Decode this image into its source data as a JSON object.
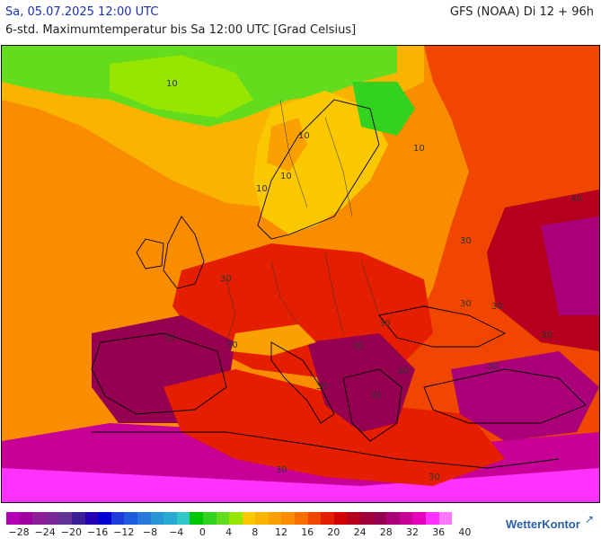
{
  "header": {
    "date": "Sa, 05.07.2025 12:00 UTC",
    "model": "GFS (NOAA) Di 12 + 96h",
    "description": "6-std. Maximumtemperatur bis Sa 12:00 UTC [Grad Celsius]"
  },
  "legend": {
    "colors": [
      "#b400b4",
      "#a000a0",
      "#8c1e96",
      "#7a2896",
      "#643296",
      "#3c1e96",
      "#2800b4",
      "#0000d2",
      "#1e3cdc",
      "#1e5adc",
      "#2878dc",
      "#2896d2",
      "#28aad2",
      "#32c8c8",
      "#00c800",
      "#32d21e",
      "#64dc1e",
      "#96e600",
      "#fac800",
      "#fab400",
      "#faa000",
      "#fa8c00",
      "#fa6e00",
      "#f04600",
      "#e61e00",
      "#d20000",
      "#b4001e",
      "#a0003c",
      "#960050",
      "#aa0078",
      "#c80096",
      "#e600be",
      "#ff32ff",
      "#ff78ff"
    ],
    "labels": [
      "−28",
      "−24",
      "−20",
      "−16",
      "−12",
      "−8",
      "−4",
      "0",
      "4",
      "8",
      "12",
      "16",
      "20",
      "24",
      "28",
      "32",
      "36",
      "40"
    ]
  },
  "map": {
    "isotherm_labels": [
      "10",
      "10",
      "10",
      "10",
      "10",
      "30",
      "30",
      "30",
      "30",
      "30",
      "30",
      "30",
      "30",
      "30",
      "30",
      "30",
      "30",
      "30",
      "30",
      "30",
      "30"
    ]
  },
  "logo": {
    "text": "WetterKontor",
    "mark": "↗"
  }
}
